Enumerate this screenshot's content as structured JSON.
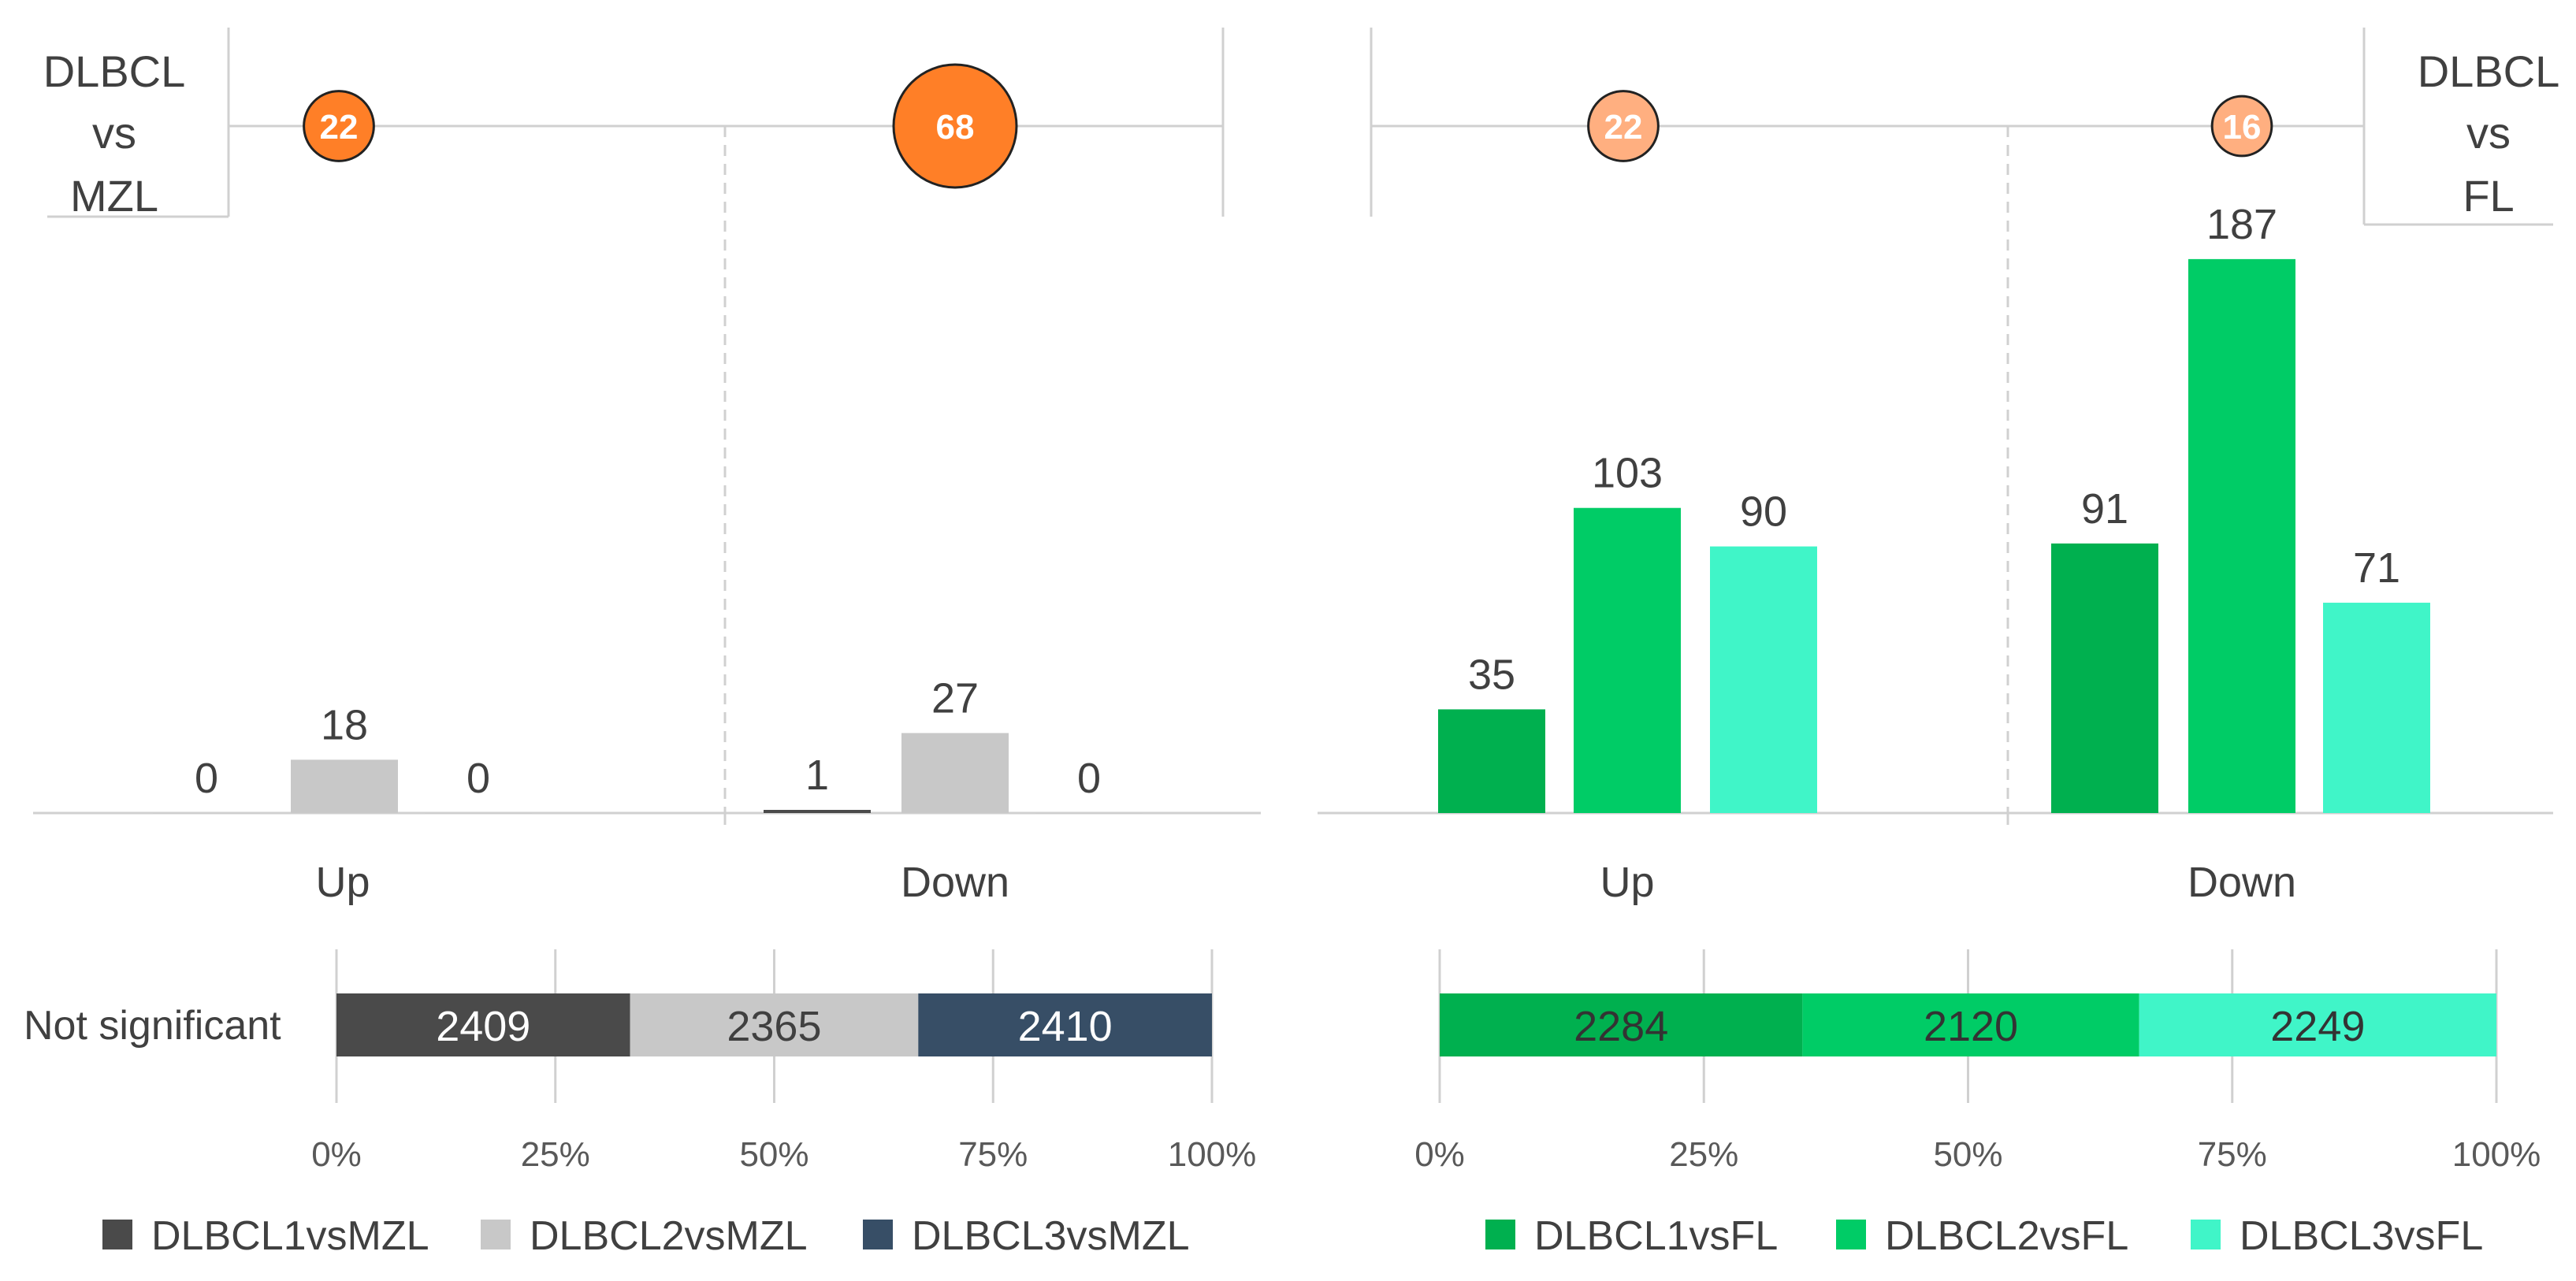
{
  "chart_data": [
    {
      "type": "bar",
      "panel": "left",
      "title": "",
      "categories": [
        "Up",
        "Down"
      ],
      "series": [
        {
          "name": "DLBCL1vsMZL",
          "values": [
            0,
            1
          ],
          "color": "#4a4a4a"
        },
        {
          "name": "DLBCL2vsMZL",
          "values": [
            18,
            27
          ],
          "color": "#c8c8c8"
        },
        {
          "name": "DLBCL3vsMZL",
          "values": [
            0,
            0
          ],
          "color": "#374e66"
        }
      ],
      "comparison_label": [
        "DLBCL",
        "vs",
        "MZL"
      ],
      "bubbles": [
        {
          "category": "Up",
          "value": 22,
          "color": "#ff7f27"
        },
        {
          "category": "Down",
          "value": 68,
          "color": "#ff7f27"
        }
      ]
    },
    {
      "type": "bar",
      "panel": "right",
      "title": "",
      "categories": [
        "Up",
        "Down"
      ],
      "series": [
        {
          "name": "DLBCL1vsFL",
          "values": [
            35,
            91
          ],
          "color": "#00b04f"
        },
        {
          "name": "DLBCL2vsFL",
          "values": [
            103,
            187
          ],
          "color": "#00cc66"
        },
        {
          "name": "DLBCL3vsFL",
          "values": [
            90,
            71
          ],
          "color": "#40f5c8"
        }
      ],
      "comparison_label": [
        "DLBCL",
        "vs",
        "FL"
      ],
      "bubbles": [
        {
          "category": "Up",
          "value": 22,
          "color": "#ffaf80"
        },
        {
          "category": "Down",
          "value": 16,
          "color": "#ffaf80"
        }
      ]
    },
    {
      "type": "bar",
      "orientation": "horizontal-stacked-100",
      "panel": "left",
      "categories": [
        "Not significant"
      ],
      "series": [
        {
          "name": "DLBCL1vsMZL",
          "values": [
            2409
          ],
          "color": "#4a4a4a"
        },
        {
          "name": "DLBCL2vsMZL",
          "values": [
            2365
          ],
          "color": "#c8c8c8"
        },
        {
          "name": "DLBCL3vsMZL",
          "values": [
            2410
          ],
          "color": "#374e66"
        }
      ],
      "xticks": [
        "0%",
        "25%",
        "50%",
        "75%",
        "100%"
      ],
      "legend": "bottom"
    },
    {
      "type": "bar",
      "orientation": "horizontal-stacked-100",
      "panel": "right",
      "categories": [
        ""
      ],
      "series": [
        {
          "name": "DLBCL1vsFL",
          "values": [
            2284
          ],
          "color": "#00b04f"
        },
        {
          "name": "DLBCL2vsFL",
          "values": [
            2120
          ],
          "color": "#00cc66"
        },
        {
          "name": "DLBCL3vsFL",
          "values": [
            2249
          ],
          "color": "#40f5c8"
        }
      ],
      "xticks": [
        "0%",
        "25%",
        "50%",
        "75%",
        "100%"
      ],
      "legend": "bottom"
    }
  ]
}
